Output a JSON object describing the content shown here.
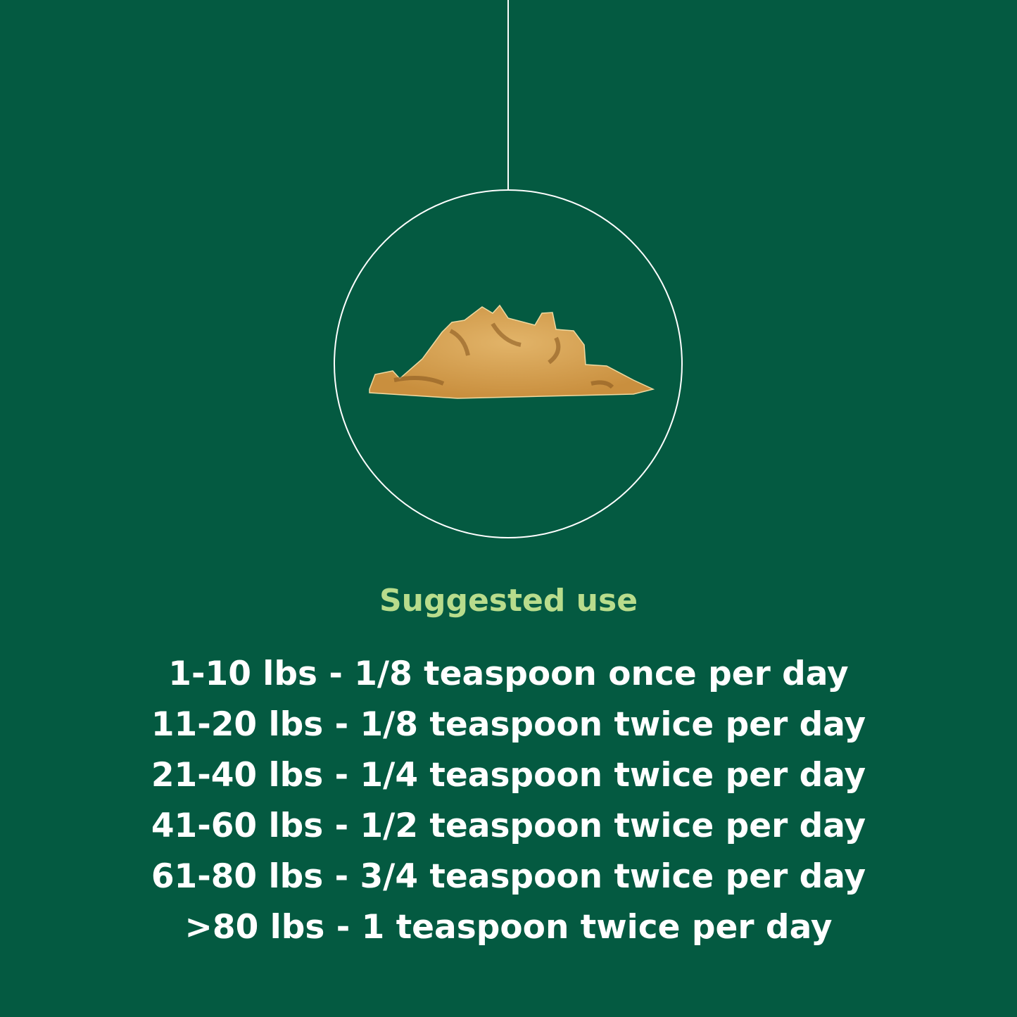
{
  "colors": {
    "background": "#045a41",
    "heading": "#b8dc8c",
    "text": "#ffffff",
    "powder": "#d9a85a"
  },
  "illustration": {
    "icon": "powder-pile-icon"
  },
  "heading": "Suggested use",
  "dosing": [
    "1-10 lbs - 1/8 teaspoon once per day",
    "11-20 lbs - 1/8 teaspoon twice per day",
    "21-40 lbs - 1/4 teaspoon twice per day",
    "41-60 lbs - 1/2 teaspoon twice per day",
    "61-80 lbs - 3/4 teaspoon twice per day",
    ">80 lbs - 1 teaspoon twice per day"
  ]
}
